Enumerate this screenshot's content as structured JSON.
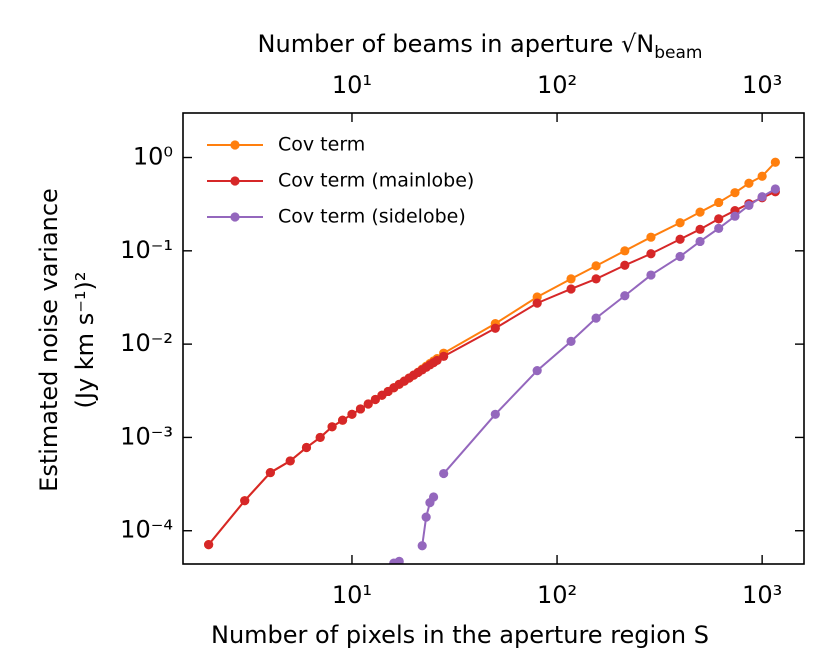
{
  "chart_data": {
    "type": "line",
    "xlabel": "Number of pixels in the aperture region S",
    "x2label": "Number of beams in aperture √N",
    "x2label_sub": "beam",
    "ylabel": "Estimated noise variance",
    "ylabel2": "(Jy km s⁻¹)²",
    "log_x": true,
    "log_y": true,
    "legend": "upper left",
    "xlim": [
      1.5,
      1600
    ],
    "x2lim": [
      1.5,
      1600
    ],
    "ylim": [
      4.4e-05,
      3
    ],
    "xticks": [
      {
        "value": 10,
        "label": "10¹"
      },
      {
        "value": 100,
        "label": "10²"
      },
      {
        "value": 1000,
        "label": "10³"
      }
    ],
    "x2ticks": [
      {
        "value": 10,
        "label": "10¹"
      },
      {
        "value": 100,
        "label": "10²"
      },
      {
        "value": 1000,
        "label": "10³"
      }
    ],
    "yticks": [
      {
        "value": 0.0001,
        "label": "10⁻⁴"
      },
      {
        "value": 0.001,
        "label": "10⁻³"
      },
      {
        "value": 0.01,
        "label": "10⁻²"
      },
      {
        "value": 0.1,
        "label": "10⁻¹"
      },
      {
        "value": 1,
        "label": "10⁰"
      }
    ],
    "x": [
      2,
      3,
      4,
      5,
      6,
      7,
      8,
      9,
      10,
      11,
      12,
      13,
      14,
      15,
      16,
      17,
      18,
      19,
      20,
      21,
      22,
      23,
      24,
      25,
      26,
      28,
      50,
      80,
      117,
      155,
      214,
      287,
      398,
      498,
      614,
      737,
      862,
      1000,
      1160
    ],
    "series": [
      {
        "name": "Cov term",
        "color": "#ff7f0e",
        "values": [
          7.1e-05,
          0.00021,
          0.00042,
          0.00056,
          0.00078,
          0.001,
          0.0013,
          0.00153,
          0.00177,
          0.00202,
          0.00228,
          0.00255,
          0.00283,
          0.00311,
          0.00341,
          0.00371,
          0.00401,
          0.00433,
          0.00465,
          0.005,
          0.0054,
          0.0058,
          0.0062,
          0.0066,
          0.007,
          0.008,
          0.0166,
          0.032,
          0.05,
          0.069,
          0.1,
          0.14,
          0.2,
          0.26,
          0.33,
          0.42,
          0.53,
          0.63,
          0.89
        ]
      },
      {
        "name": "Cov term (mainlobe)",
        "color": "#d62728",
        "values": [
          7.1e-05,
          0.00021,
          0.00042,
          0.00056,
          0.00078,
          0.001,
          0.0013,
          0.00153,
          0.00177,
          0.00202,
          0.00228,
          0.00255,
          0.00283,
          0.00311,
          0.00341,
          0.00371,
          0.00401,
          0.00433,
          0.00465,
          0.00497,
          0.0053,
          0.00564,
          0.00599,
          0.00633,
          0.00669,
          0.0074,
          0.0148,
          0.0275,
          0.039,
          0.05,
          0.07,
          0.093,
          0.133,
          0.17,
          0.22,
          0.27,
          0.32,
          0.37,
          0.43
        ]
      },
      {
        "name": "Cov term (sidelobe)",
        "color": "#9467bd",
        "values": [
          null,
          null,
          null,
          null,
          null,
          null,
          null,
          null,
          null,
          null,
          null,
          null,
          null,
          null,
          4.5e-05,
          4.7e-05,
          null,
          null,
          null,
          null,
          6.9e-05,
          0.00014,
          0.0002,
          0.00023,
          null,
          0.00041,
          0.00177,
          0.0052,
          0.0107,
          0.019,
          0.033,
          0.055,
          0.087,
          0.126,
          0.174,
          0.235,
          0.307,
          0.38,
          0.46
        ]
      }
    ]
  }
}
